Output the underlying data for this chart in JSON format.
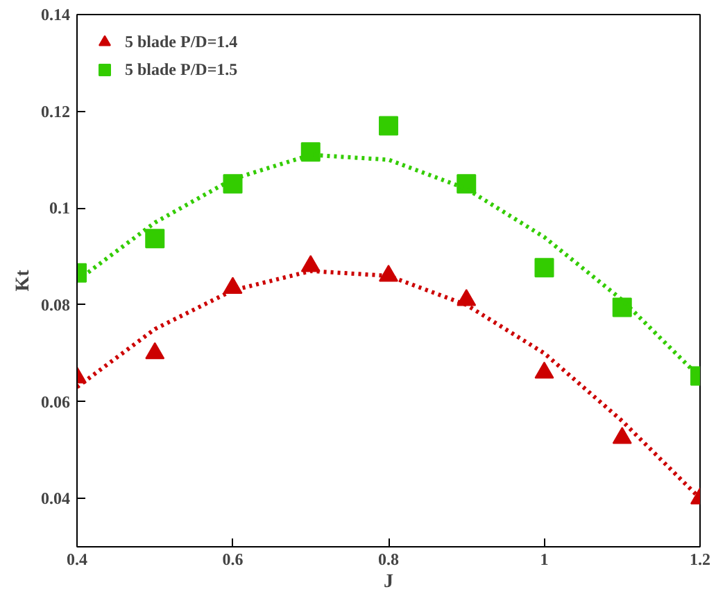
{
  "chart_data": {
    "type": "scatter",
    "xlabel": "J",
    "ylabel": "Kt",
    "xlim": [
      0.4,
      1.2
    ],
    "ylim": [
      0.03,
      0.14
    ],
    "xticks": [
      0.4,
      0.6,
      0.8,
      1,
      1.2
    ],
    "yticks": [
      0.04,
      0.06,
      0.08,
      0.1,
      0.12,
      0.14
    ],
    "grid": false,
    "legend": "top left",
    "series": [
      {
        "name": "5 blade P/D=1.4",
        "color": "#cc0000",
        "marker": "triangle",
        "x": [
          0.4,
          0.5,
          0.6,
          0.7,
          0.8,
          0.9,
          1.0,
          1.1,
          1.2
        ],
        "values": [
          0.065,
          0.07,
          0.0835,
          0.088,
          0.086,
          0.081,
          0.066,
          0.0525,
          0.04
        ]
      },
      {
        "name": "5 blade P/D=1.5",
        "color": "#33cc00",
        "marker": "square",
        "x": [
          0.4,
          0.5,
          0.6,
          0.7,
          0.8,
          0.9,
          1.0,
          1.1,
          1.2
        ],
        "values": [
          0.0866,
          0.0937,
          0.105,
          0.1116,
          0.117,
          0.105,
          0.0877,
          0.0795,
          0.0653
        ]
      },
      {
        "type": "line",
        "color": "#cc0000",
        "line_style": "dotted",
        "x": [
          0.4,
          0.5,
          0.6,
          0.7,
          0.8,
          0.9,
          1.0,
          1.1,
          1.2
        ],
        "values": [
          0.063,
          0.075,
          0.083,
          0.087,
          0.086,
          0.08,
          0.07,
          0.056,
          0.04
        ]
      },
      {
        "type": "line",
        "color": "#33cc00",
        "line_style": "dotted",
        "x": [
          0.4,
          0.5,
          0.6,
          0.7,
          0.8,
          0.9,
          1.0,
          1.1,
          1.2
        ],
        "values": [
          0.085,
          0.097,
          0.106,
          0.111,
          0.11,
          0.104,
          0.094,
          0.081,
          0.065
        ]
      }
    ]
  }
}
